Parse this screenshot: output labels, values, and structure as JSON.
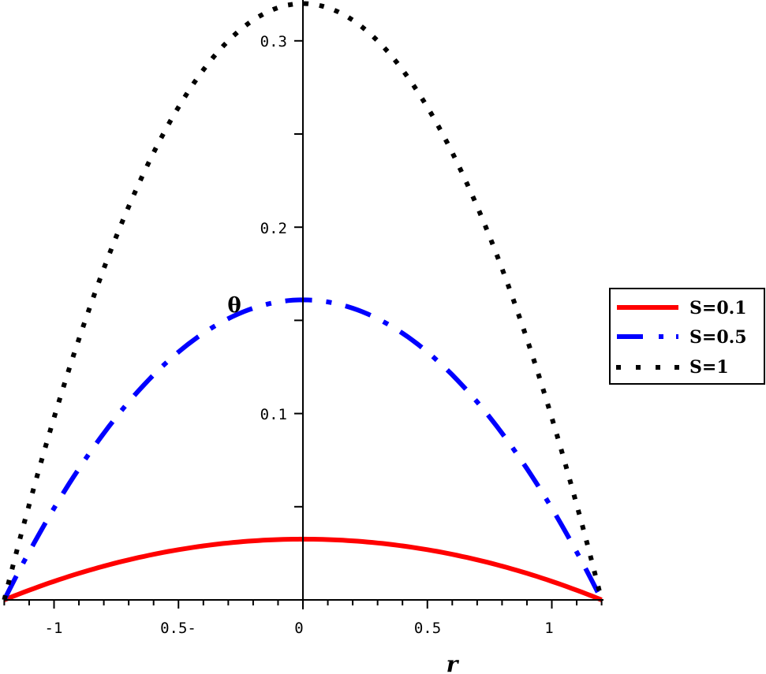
{
  "chart_data": {
    "type": "line",
    "title": "",
    "xlabel": "r",
    "ylabel": "θ",
    "xlim": [
      -1.2,
      1.2
    ],
    "ylim": [
      0,
      0.32
    ],
    "grid": false,
    "legend_position": "right",
    "x_ticks": [
      {
        "value": -1,
        "label": "-1"
      },
      {
        "value": -0.5,
        "label": "0.5-"
      },
      {
        "value": 0,
        "label": "0"
      },
      {
        "value": 0.5,
        "label": "0.5"
      },
      {
        "value": 1,
        "label": "1"
      }
    ],
    "y_ticks": [
      {
        "value": 0.1,
        "label": "0.1"
      },
      {
        "value": 0.2,
        "label": "0.2"
      },
      {
        "value": 0.3,
        "label": "0.3"
      }
    ],
    "series": [
      {
        "name": "S=0.1",
        "color": "#ff0000",
        "style": "solid",
        "peak": 0.0326,
        "x": [
          -1.2,
          -1.0,
          -0.8,
          -0.6,
          -0.4,
          -0.2,
          0,
          0.2,
          0.4,
          0.6,
          0.8,
          1.0,
          1.2
        ],
        "values": [
          0,
          0.01,
          0.0176,
          0.0236,
          0.028,
          0.0314,
          0.0326,
          0.0314,
          0.028,
          0.0236,
          0.0176,
          0.01,
          0
        ]
      },
      {
        "name": "S=0.5",
        "color": "#0000ff",
        "style": "dashdot",
        "peak": 0.161,
        "x": [
          -1.2,
          -1.0,
          -0.8,
          -0.6,
          -0.4,
          -0.2,
          0,
          0.2,
          0.4,
          0.6,
          0.8,
          1.0,
          1.2
        ],
        "values": [
          0,
          0.049,
          0.087,
          0.117,
          0.139,
          0.155,
          0.161,
          0.155,
          0.139,
          0.117,
          0.087,
          0.049,
          0
        ]
      },
      {
        "name": "S=1",
        "color": "#000000",
        "style": "dotted",
        "peak": 0.32,
        "x": [
          -1.2,
          -1.0,
          -0.8,
          -0.6,
          -0.4,
          -0.2,
          0,
          0.2,
          0.4,
          0.6,
          0.8,
          1.0,
          1.2
        ],
        "values": [
          0,
          0.098,
          0.173,
          0.232,
          0.276,
          0.307,
          0.32,
          0.307,
          0.276,
          0.232,
          0.173,
          0.098,
          0
        ]
      }
    ]
  },
  "axes": {
    "x_title": "r",
    "y_title": "θ",
    "x_tick_labels": [
      "-1",
      "0.5-",
      "0",
      "0.5",
      "1"
    ],
    "y_tick_labels": [
      "0.1",
      "0.2",
      "0.3"
    ]
  },
  "legend": {
    "items": [
      {
        "label": "S=0.1",
        "color": "#ff0000"
      },
      {
        "label": "S=0.5",
        "color": "#0000ff"
      },
      {
        "label": "S=1",
        "color": "#000000"
      }
    ]
  }
}
